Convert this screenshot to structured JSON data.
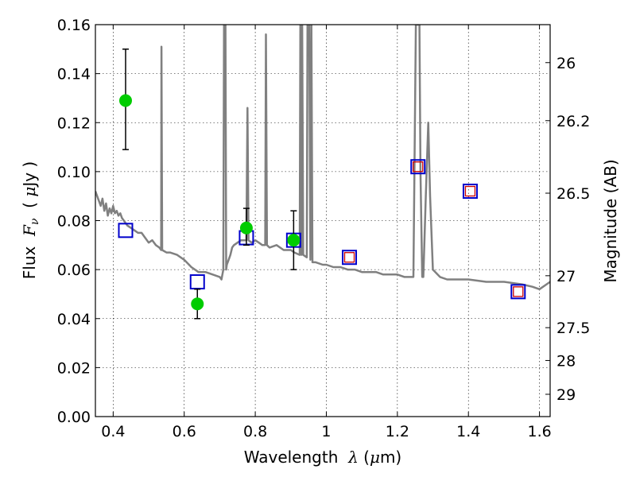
{
  "chart_data": {
    "type": "scatter",
    "x_label_parts": [
      "Wavelength  ",
      "λ",
      " (",
      "μ",
      "m)"
    ],
    "y_label_parts": [
      "Flux  ",
      "F",
      "ν",
      "  ( ",
      "μ",
      "Jy )"
    ],
    "y2_label": "Magnitude (AB)",
    "xlim": [
      0.35,
      1.63
    ],
    "ylim": [
      0.0,
      0.16
    ],
    "grid": true,
    "x_ticks": [
      0.4,
      0.6,
      0.8,
      1.0,
      1.2,
      1.4,
      1.6
    ],
    "x_tick_labels": [
      "0.4",
      "0.6",
      "0.8",
      "1",
      "1.2",
      "1.4",
      "1.6"
    ],
    "y_ticks": [
      0.0,
      0.02,
      0.04,
      0.06,
      0.08,
      0.1,
      0.12,
      0.14,
      0.16
    ],
    "y_tick_labels": [
      "0.00",
      "0.02",
      "0.04",
      "0.06",
      "0.08",
      "0.10",
      "0.12",
      "0.14",
      "0.16"
    ],
    "y2_ticks": [
      {
        "flux": 0.1445,
        "label": "26"
      },
      {
        "flux": 0.1208,
        "label": "26.2"
      },
      {
        "flux": 0.0912,
        "label": "26.5"
      },
      {
        "flux": 0.0575,
        "label": "27"
      },
      {
        "flux": 0.0363,
        "label": "27.5"
      },
      {
        "flux": 0.0229,
        "label": "28"
      },
      {
        "flux": 0.0091,
        "label": "29"
      }
    ],
    "series": [
      {
        "marker": "line",
        "color": "#808080",
        "points": [
          [
            0.35,
            0.092
          ],
          [
            0.355,
            0.09
          ],
          [
            0.36,
            0.088
          ],
          [
            0.365,
            0.086
          ],
          [
            0.37,
            0.089
          ],
          [
            0.375,
            0.084
          ],
          [
            0.38,
            0.087
          ],
          [
            0.385,
            0.082
          ],
          [
            0.39,
            0.085
          ],
          [
            0.395,
            0.083
          ],
          [
            0.4,
            0.086
          ],
          [
            0.405,
            0.083
          ],
          [
            0.41,
            0.084
          ],
          [
            0.415,
            0.082
          ],
          [
            0.42,
            0.083
          ],
          [
            0.425,
            0.081
          ],
          [
            0.43,
            0.08
          ],
          [
            0.435,
            0.079
          ],
          [
            0.44,
            0.078
          ],
          [
            0.45,
            0.077
          ],
          [
            0.46,
            0.076
          ],
          [
            0.47,
            0.075
          ],
          [
            0.48,
            0.075
          ],
          [
            0.49,
            0.073
          ],
          [
            0.5,
            0.071
          ],
          [
            0.51,
            0.072
          ],
          [
            0.52,
            0.07
          ],
          [
            0.53,
            0.069
          ],
          [
            0.535,
            0.068
          ],
          [
            0.536,
            0.151
          ],
          [
            0.538,
            0.068
          ],
          [
            0.55,
            0.067
          ],
          [
            0.56,
            0.067
          ],
          [
            0.58,
            0.066
          ],
          [
            0.6,
            0.064
          ],
          [
            0.62,
            0.061
          ],
          [
            0.64,
            0.059
          ],
          [
            0.66,
            0.059
          ],
          [
            0.68,
            0.058
          ],
          [
            0.7,
            0.057
          ],
          [
            0.705,
            0.056
          ],
          [
            0.71,
            0.06
          ],
          [
            0.712,
            0.16
          ],
          [
            0.716,
            0.16
          ],
          [
            0.718,
            0.06
          ],
          [
            0.72,
            0.062
          ],
          [
            0.725,
            0.064
          ],
          [
            0.73,
            0.066
          ],
          [
            0.735,
            0.069
          ],
          [
            0.74,
            0.07
          ],
          [
            0.75,
            0.071
          ],
          [
            0.76,
            0.072
          ],
          [
            0.77,
            0.072
          ],
          [
            0.775,
            0.072
          ],
          [
            0.778,
            0.126
          ],
          [
            0.781,
            0.072
          ],
          [
            0.79,
            0.071
          ],
          [
            0.8,
            0.072
          ],
          [
            0.81,
            0.071
          ],
          [
            0.82,
            0.07
          ],
          [
            0.828,
            0.07
          ],
          [
            0.83,
            0.156
          ],
          [
            0.833,
            0.07
          ],
          [
            0.84,
            0.069
          ],
          [
            0.86,
            0.07
          ],
          [
            0.88,
            0.068
          ],
          [
            0.9,
            0.068
          ],
          [
            0.91,
            0.067
          ],
          [
            0.925,
            0.066
          ],
          [
            0.927,
            0.16
          ],
          [
            0.93,
            0.066
          ],
          [
            0.932,
            0.16
          ],
          [
            0.935,
            0.066
          ],
          [
            0.945,
            0.065
          ],
          [
            0.947,
            0.16
          ],
          [
            0.952,
            0.16
          ],
          [
            0.955,
            0.064
          ],
          [
            0.958,
            0.16
          ],
          [
            0.961,
            0.063
          ],
          [
            0.97,
            0.063
          ],
          [
            0.99,
            0.062
          ],
          [
            1.0,
            0.062
          ],
          [
            1.02,
            0.061
          ],
          [
            1.04,
            0.061
          ],
          [
            1.06,
            0.06
          ],
          [
            1.08,
            0.06
          ],
          [
            1.1,
            0.059
          ],
          [
            1.12,
            0.059
          ],
          [
            1.14,
            0.059
          ],
          [
            1.16,
            0.058
          ],
          [
            1.18,
            0.058
          ],
          [
            1.2,
            0.058
          ],
          [
            1.22,
            0.057
          ],
          [
            1.245,
            0.057
          ],
          [
            1.248,
            0.1
          ],
          [
            1.252,
            0.16
          ],
          [
            1.258,
            0.16
          ],
          [
            1.262,
            0.16
          ],
          [
            1.265,
            0.1
          ],
          [
            1.27,
            0.057
          ],
          [
            1.273,
            0.057
          ],
          [
            1.28,
            0.09
          ],
          [
            1.287,
            0.12
          ],
          [
            1.292,
            0.09
          ],
          [
            1.3,
            0.06
          ],
          [
            1.32,
            0.057
          ],
          [
            1.34,
            0.056
          ],
          [
            1.36,
            0.056
          ],
          [
            1.4,
            0.056
          ],
          [
            1.45,
            0.055
          ],
          [
            1.5,
            0.055
          ],
          [
            1.55,
            0.054
          ],
          [
            1.58,
            0.053
          ],
          [
            1.6,
            0.052
          ],
          [
            1.62,
            0.054
          ],
          [
            1.63,
            0.055
          ]
        ]
      },
      {
        "marker": "square-blue",
        "color": "#0000cc",
        "points": [
          [
            0.435,
            0.076
          ],
          [
            0.637,
            0.055
          ],
          [
            0.775,
            0.073
          ],
          [
            0.908,
            0.072
          ],
          [
            1.065,
            0.065
          ],
          [
            1.258,
            0.102
          ],
          [
            1.405,
            0.092
          ],
          [
            1.54,
            0.051
          ]
        ]
      },
      {
        "marker": "square-red",
        "color": "#cc0000",
        "points": [
          [
            1.065,
            0.065
          ],
          [
            1.258,
            0.102
          ],
          [
            1.405,
            0.092
          ],
          [
            1.54,
            0.051
          ]
        ]
      },
      {
        "marker": "circle-errorbar",
        "color": "#00cc00",
        "points": [
          {
            "x": 0.435,
            "y": 0.129,
            "lo": 0.109,
            "hi": 0.15
          },
          {
            "x": 0.637,
            "y": 0.046,
            "lo": 0.04,
            "hi": 0.052
          },
          {
            "x": 0.775,
            "y": 0.077,
            "lo": 0.07,
            "hi": 0.085
          },
          {
            "x": 0.908,
            "y": 0.072,
            "lo": 0.06,
            "hi": 0.084
          }
        ]
      }
    ]
  }
}
